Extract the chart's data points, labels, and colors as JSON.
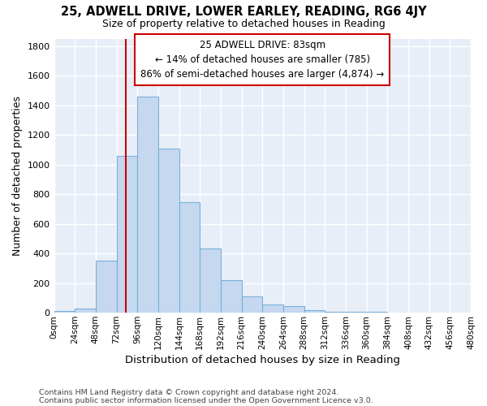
{
  "title1": "25, ADWELL DRIVE, LOWER EARLEY, READING, RG6 4JY",
  "title2": "Size of property relative to detached houses in Reading",
  "xlabel": "Distribution of detached houses by size in Reading",
  "ylabel": "Number of detached properties",
  "bin_labels": [
    "0sqm",
    "24sqm",
    "48sqm",
    "72sqm",
    "96sqm",
    "120sqm",
    "144sqm",
    "168sqm",
    "192sqm",
    "216sqm",
    "240sqm",
    "264sqm",
    "288sqm",
    "312sqm",
    "336sqm",
    "360sqm",
    "384sqm",
    "408sqm",
    "432sqm",
    "456sqm",
    "480sqm"
  ],
  "bar_values": [
    10,
    28,
    350,
    1060,
    1460,
    1110,
    745,
    435,
    220,
    110,
    55,
    45,
    20,
    5,
    5,
    5,
    2,
    1,
    1,
    0
  ],
  "bar_color": "#c5d8f0",
  "bar_edge_color": "#7ab0d8",
  "vline_color": "#cc0000",
  "annotation_text": "25 ADWELL DRIVE: 83sqm\n← 14% of detached houses are smaller (785)\n86% of semi-detached houses are larger (4,874) →",
  "annotation_box_edge_color": "#cc0000",
  "footnote1": "Contains HM Land Registry data © Crown copyright and database right 2024.",
  "footnote2": "Contains public sector information licensed under the Open Government Licence v3.0.",
  "ylim": [
    0,
    1850
  ],
  "bin_width": 24,
  "property_size": 83,
  "background_color": "#e8eef8",
  "title1_fontsize": 10.5,
  "title2_fontsize": 9,
  "ylabel_fontsize": 9,
  "xlabel_fontsize": 9.5,
  "tick_fontsize": 7.5,
  "annot_fontsize": 8.5,
  "footnote_fontsize": 6.8
}
